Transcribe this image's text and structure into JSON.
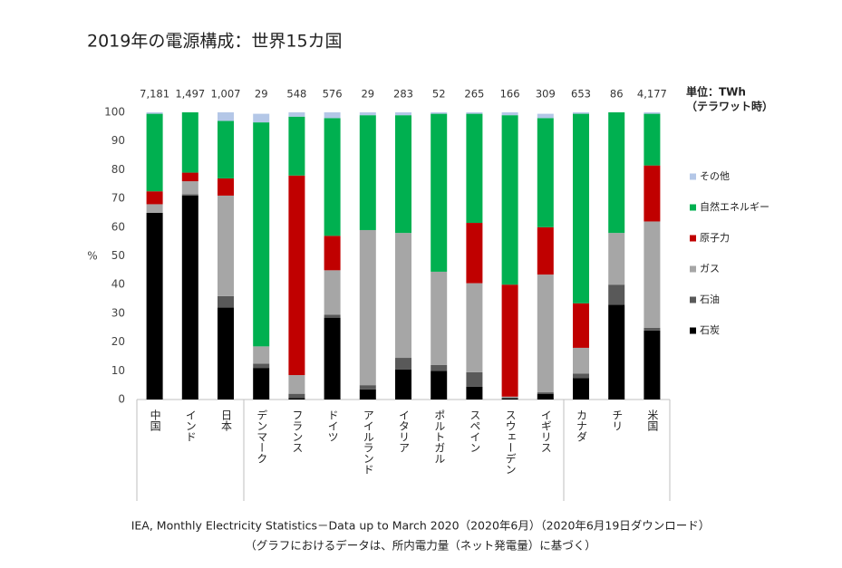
{
  "chart_data": {
    "type": "stacked-bar",
    "title": "2019年の電源構成：世界15カ国",
    "y_label": "%",
    "categories": [
      "中国",
      "インド",
      "日本",
      "デンマーク",
      "フランス",
      "ドイツ",
      "アイルランド",
      "イタリア",
      "ポルトガル",
      "スペイン",
      "スウェーデン",
      "イギリス",
      "カナダ",
      "チリ",
      "米国"
    ],
    "series": [
      {
        "name": "石炭",
        "color": "#000000",
        "values": [
          65,
          71,
          32,
          11,
          0.5,
          28.5,
          3.5,
          10.5,
          10,
          4.5,
          0.5,
          2,
          7.5,
          33,
          24
        ]
      },
      {
        "name": "石油",
        "color": "#595959",
        "values": [
          0,
          0.5,
          4,
          1.5,
          1.5,
          1,
          1.5,
          4,
          2,
          5,
          0,
          0.5,
          1.5,
          7,
          1
        ]
      },
      {
        "name": "ガス",
        "color": "#a6a6a6",
        "values": [
          3,
          4.5,
          35,
          6,
          6.5,
          15.5,
          54,
          43.5,
          32.5,
          31,
          0.5,
          41,
          9,
          18,
          37
        ]
      },
      {
        "name": "原子力",
        "color": "#c00000",
        "values": [
          4.5,
          3,
          6,
          0,
          69.5,
          12,
          0,
          0,
          0,
          21,
          39,
          16.5,
          15.5,
          0,
          19.5
        ]
      },
      {
        "name": "自然エネルギー",
        "color": "#00b050",
        "values": [
          27,
          21,
          20,
          78,
          20.5,
          41,
          40,
          41,
          55,
          38,
          59,
          38,
          66,
          42,
          18
        ]
      },
      {
        "name": "その他",
        "color": "#b4c7e7",
        "values": [
          0.5,
          0,
          3,
          3,
          1.5,
          2,
          1,
          1,
          0.5,
          0.5,
          1,
          1.5,
          0.5,
          0,
          0.5
        ]
      }
    ],
    "totals": {
      "unit": [
        "単位：TWh",
        "（テラワット時）"
      ],
      "values": [
        7181,
        1497,
        1007,
        29,
        548,
        576,
        29,
        283,
        52,
        265,
        166,
        309,
        653,
        86,
        4177
      ],
      "value_labels": [
        "7,181",
        "1,497",
        "1,007",
        "29",
        "548",
        "576",
        "29",
        "283",
        "52",
        "265",
        "166",
        "309",
        "653",
        "86",
        "4,177"
      ]
    },
    "ylim": [
      0,
      100
    ],
    "yticks": [
      0,
      10,
      20,
      30,
      40,
      50,
      60,
      70,
      80,
      90,
      100
    ],
    "grid": false,
    "legend": "right",
    "source": [
      "IEA, Monthly Electricity Statistics－Data up to March 2020（2020年6月）（2020年6月19日ダウンロード）",
      "（グラフにおけるデータは、所内電力量（ネット発電量）に基づく）"
    ]
  }
}
